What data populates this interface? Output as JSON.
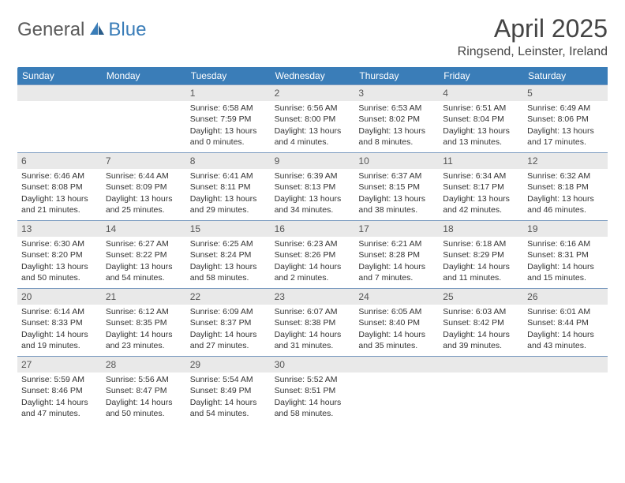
{
  "logo": {
    "text1": "General",
    "text2": "Blue"
  },
  "title": "April 2025",
  "location": "Ringsend, Leinster, Ireland",
  "colors": {
    "header_bg": "#3a7db8",
    "header_text": "#ffffff",
    "daynum_bg": "#e9e9e9",
    "border": "#7a9abf",
    "logo_gray": "#5a5a5a",
    "logo_blue": "#3a7db8"
  },
  "weekdays": [
    "Sunday",
    "Monday",
    "Tuesday",
    "Wednesday",
    "Thursday",
    "Friday",
    "Saturday"
  ],
  "leading_blanks": 2,
  "days": [
    {
      "n": 1,
      "sunrise": "6:58 AM",
      "sunset": "7:59 PM",
      "daylight": "13 hours and 0 minutes."
    },
    {
      "n": 2,
      "sunrise": "6:56 AM",
      "sunset": "8:00 PM",
      "daylight": "13 hours and 4 minutes."
    },
    {
      "n": 3,
      "sunrise": "6:53 AM",
      "sunset": "8:02 PM",
      "daylight": "13 hours and 8 minutes."
    },
    {
      "n": 4,
      "sunrise": "6:51 AM",
      "sunset": "8:04 PM",
      "daylight": "13 hours and 13 minutes."
    },
    {
      "n": 5,
      "sunrise": "6:49 AM",
      "sunset": "8:06 PM",
      "daylight": "13 hours and 17 minutes."
    },
    {
      "n": 6,
      "sunrise": "6:46 AM",
      "sunset": "8:08 PM",
      "daylight": "13 hours and 21 minutes."
    },
    {
      "n": 7,
      "sunrise": "6:44 AM",
      "sunset": "8:09 PM",
      "daylight": "13 hours and 25 minutes."
    },
    {
      "n": 8,
      "sunrise": "6:41 AM",
      "sunset": "8:11 PM",
      "daylight": "13 hours and 29 minutes."
    },
    {
      "n": 9,
      "sunrise": "6:39 AM",
      "sunset": "8:13 PM",
      "daylight": "13 hours and 34 minutes."
    },
    {
      "n": 10,
      "sunrise": "6:37 AM",
      "sunset": "8:15 PM",
      "daylight": "13 hours and 38 minutes."
    },
    {
      "n": 11,
      "sunrise": "6:34 AM",
      "sunset": "8:17 PM",
      "daylight": "13 hours and 42 minutes."
    },
    {
      "n": 12,
      "sunrise": "6:32 AM",
      "sunset": "8:18 PM",
      "daylight": "13 hours and 46 minutes."
    },
    {
      "n": 13,
      "sunrise": "6:30 AM",
      "sunset": "8:20 PM",
      "daylight": "13 hours and 50 minutes."
    },
    {
      "n": 14,
      "sunrise": "6:27 AM",
      "sunset": "8:22 PM",
      "daylight": "13 hours and 54 minutes."
    },
    {
      "n": 15,
      "sunrise": "6:25 AM",
      "sunset": "8:24 PM",
      "daylight": "13 hours and 58 minutes."
    },
    {
      "n": 16,
      "sunrise": "6:23 AM",
      "sunset": "8:26 PM",
      "daylight": "14 hours and 2 minutes."
    },
    {
      "n": 17,
      "sunrise": "6:21 AM",
      "sunset": "8:28 PM",
      "daylight": "14 hours and 7 minutes."
    },
    {
      "n": 18,
      "sunrise": "6:18 AM",
      "sunset": "8:29 PM",
      "daylight": "14 hours and 11 minutes."
    },
    {
      "n": 19,
      "sunrise": "6:16 AM",
      "sunset": "8:31 PM",
      "daylight": "14 hours and 15 minutes."
    },
    {
      "n": 20,
      "sunrise": "6:14 AM",
      "sunset": "8:33 PM",
      "daylight": "14 hours and 19 minutes."
    },
    {
      "n": 21,
      "sunrise": "6:12 AM",
      "sunset": "8:35 PM",
      "daylight": "14 hours and 23 minutes."
    },
    {
      "n": 22,
      "sunrise": "6:09 AM",
      "sunset": "8:37 PM",
      "daylight": "14 hours and 27 minutes."
    },
    {
      "n": 23,
      "sunrise": "6:07 AM",
      "sunset": "8:38 PM",
      "daylight": "14 hours and 31 minutes."
    },
    {
      "n": 24,
      "sunrise": "6:05 AM",
      "sunset": "8:40 PM",
      "daylight": "14 hours and 35 minutes."
    },
    {
      "n": 25,
      "sunrise": "6:03 AM",
      "sunset": "8:42 PM",
      "daylight": "14 hours and 39 minutes."
    },
    {
      "n": 26,
      "sunrise": "6:01 AM",
      "sunset": "8:44 PM",
      "daylight": "14 hours and 43 minutes."
    },
    {
      "n": 27,
      "sunrise": "5:59 AM",
      "sunset": "8:46 PM",
      "daylight": "14 hours and 47 minutes."
    },
    {
      "n": 28,
      "sunrise": "5:56 AM",
      "sunset": "8:47 PM",
      "daylight": "14 hours and 50 minutes."
    },
    {
      "n": 29,
      "sunrise": "5:54 AM",
      "sunset": "8:49 PM",
      "daylight": "14 hours and 54 minutes."
    },
    {
      "n": 30,
      "sunrise": "5:52 AM",
      "sunset": "8:51 PM",
      "daylight": "14 hours and 58 minutes."
    }
  ],
  "labels": {
    "sunrise": "Sunrise:",
    "sunset": "Sunset:",
    "daylight": "Daylight:"
  }
}
